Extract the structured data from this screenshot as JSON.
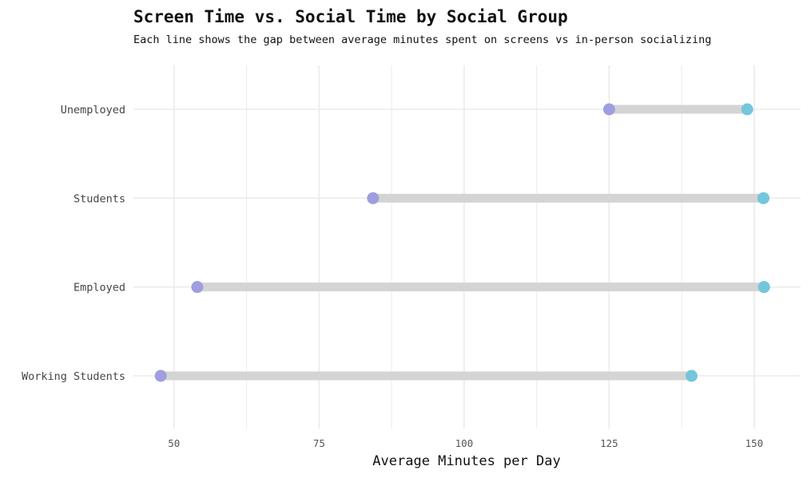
{
  "chart_data": {
    "type": "dumbbell",
    "title": "Screen Time vs. Social Time by Social Group",
    "subtitle": "Each line shows the gap between average minutes spent on screens vs in-person socializing",
    "xlabel": "Average Minutes per Day",
    "ylabel": "",
    "xlim": [
      43,
      158
    ],
    "x_ticks": [
      50,
      75,
      100,
      125,
      150
    ],
    "x_minor_ticks": [
      62.5,
      87.5,
      112.5,
      137.5
    ],
    "grid": true,
    "legend": "none",
    "categories": [
      "Unemployed",
      "Students",
      "Employed",
      "Working Students"
    ],
    "series": [
      {
        "color": "#9e9ee0",
        "values": [
          125,
          84.3,
          54,
          47.7
        ]
      },
      {
        "color": "#74c6dc",
        "values": [
          148.8,
          151.6,
          151.7,
          139.2
        ]
      }
    ],
    "connector_color": "#d4d4d4",
    "grid_color": "#ebebeb"
  }
}
